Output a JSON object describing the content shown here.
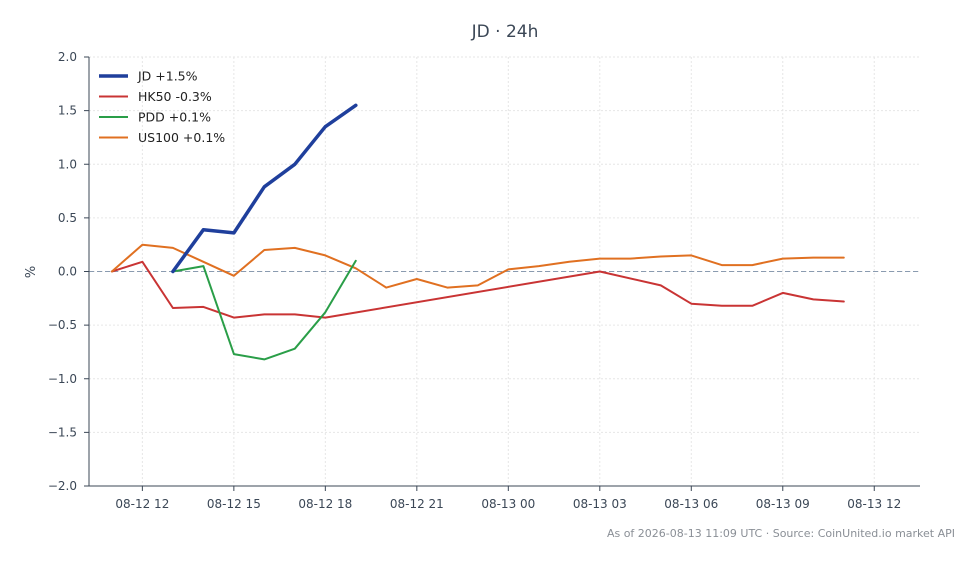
{
  "chart_data": {
    "type": "line",
    "title": "JD · 24h",
    "xlabel": "",
    "ylabel": "%",
    "ylim": [
      -2.0,
      2.0
    ],
    "xlim_hours": [
      -1.75,
      25.5
    ],
    "y_ticks": [
      "−2.0",
      "−1.5",
      "−1.0",
      "−0.5",
      "0.0",
      "0.5",
      "1.0",
      "1.5",
      "2.0"
    ],
    "y_tick_values": [
      -2.0,
      -1.5,
      -1.0,
      -0.5,
      0.0,
      0.5,
      1.0,
      1.5,
      2.0
    ],
    "x_ticks": [
      "08-12 12",
      "08-12 15",
      "08-12 18",
      "08-12 21",
      "08-13 00",
      "08-13 03",
      "08-13 06",
      "08-13 09",
      "08-13 12"
    ],
    "x_tick_values": [
      0,
      3,
      6,
      9,
      12,
      15,
      18,
      21,
      24
    ],
    "x_unit": "hours since 08-12 12:00",
    "grid": true,
    "zero_line": true,
    "legend_position": "top-left",
    "source_text": "As of 2026-08-13 11:09 UTC · Source: CoinUnited.io market API",
    "series": [
      {
        "name": "JD +1.5%",
        "color": "#1f3f9c",
        "width": 3.5,
        "x": [
          1,
          2,
          3,
          4,
          5,
          6,
          7
        ],
        "y": [
          0.0,
          0.39,
          0.36,
          0.79,
          1.0,
          1.35,
          1.55
        ]
      },
      {
        "name": "HK50 -0.3%",
        "color": "#c93434",
        "width": 2,
        "x": [
          -1,
          0,
          1,
          2,
          3,
          4,
          5,
          6,
          15,
          17,
          18,
          19,
          20,
          21,
          22,
          23
        ],
        "y": [
          0.0,
          0.09,
          -0.34,
          -0.33,
          -0.43,
          -0.4,
          -0.4,
          -0.43,
          0.0,
          -0.13,
          -0.3,
          -0.32,
          -0.32,
          -0.2,
          -0.26,
          -0.28
        ]
      },
      {
        "name": "PDD +0.1%",
        "color": "#2a9e48",
        "width": 2,
        "x": [
          1,
          2,
          3,
          4,
          5,
          6,
          7
        ],
        "y": [
          0.0,
          0.05,
          -0.77,
          -0.82,
          -0.72,
          -0.38,
          0.1
        ]
      },
      {
        "name": "US100 +0.1%",
        "color": "#e07021",
        "width": 2,
        "x": [
          -1,
          0,
          1,
          2,
          3,
          4,
          5,
          6,
          7,
          8,
          9,
          10,
          11,
          12,
          13,
          14,
          15,
          16,
          17,
          18,
          19,
          20,
          21,
          22,
          23
        ],
        "y": [
          0.0,
          0.25,
          0.22,
          0.09,
          -0.04,
          0.2,
          0.22,
          0.15,
          0.03,
          -0.15,
          -0.07,
          -0.15,
          -0.13,
          0.02,
          0.05,
          0.09,
          0.12,
          0.12,
          0.14,
          0.15,
          0.06,
          0.06,
          0.12,
          0.13,
          0.13
        ]
      }
    ]
  }
}
